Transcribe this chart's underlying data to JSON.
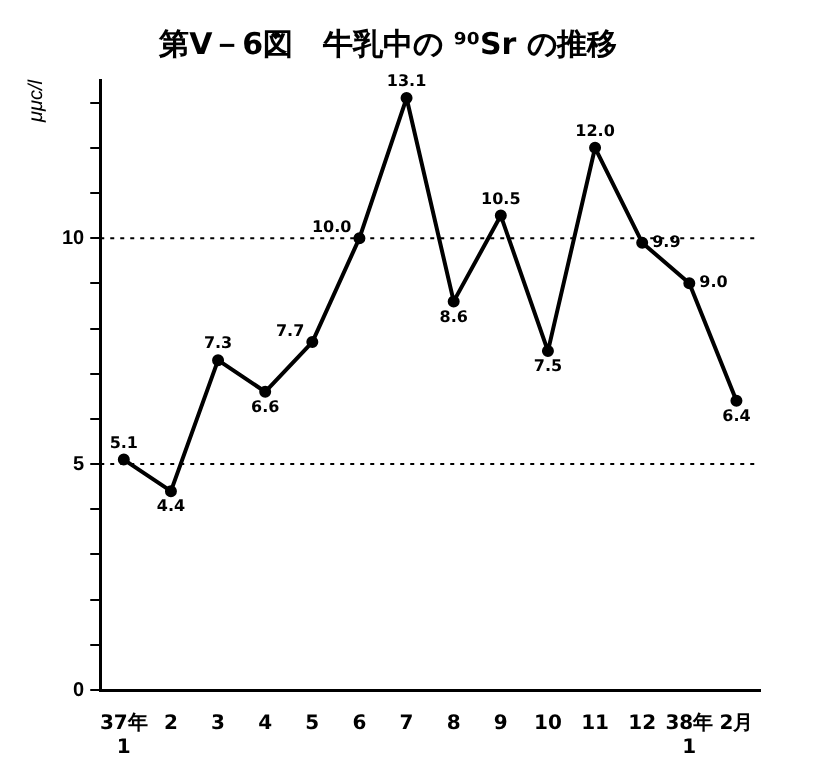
{
  "chart_data": {
    "type": "line",
    "title": "第Ⅴ－6図　牛乳中の ⁹⁰Sr の推移",
    "ylabel": "μμc/l",
    "categories": [
      "37年\n1",
      "2",
      "3",
      "4",
      "5",
      "6",
      "7",
      "8",
      "9",
      "10",
      "11",
      "12",
      "38年\n1",
      "2月"
    ],
    "series": [
      {
        "color": "#000000",
        "values": [
          5.1,
          4.4,
          7.3,
          6.6,
          7.7,
          10.0,
          13.1,
          8.6,
          10.5,
          7.5,
          12.0,
          9.9,
          9.0,
          6.4
        ],
        "value_labels": [
          "5.1",
          "4.4",
          "7.3",
          "6.6",
          "7.7",
          "10.0",
          "13.1",
          "8.6",
          "10.5",
          "7.5",
          "12.0",
          "9.9",
          "9.0",
          "6.4"
        ]
      }
    ],
    "ylim": [
      0,
      13.5
    ],
    "yticks": [
      0,
      {
        "value": 1,
        "label": null
      },
      {
        "value": 2,
        "label": null
      },
      {
        "value": 3,
        "label": null
      },
      {
        "value": 4,
        "label": null
      },
      5,
      {
        "value": 6,
        "label": null
      },
      {
        "value": 7,
        "label": null
      },
      {
        "value": 8,
        "label": null
      },
      {
        "value": 9,
        "label": null
      },
      10,
      {
        "value": 11,
        "label": null
      },
      {
        "value": 12,
        "label": null
      },
      {
        "value": 13,
        "label": null
      }
    ],
    "ref_lines": [
      {
        "axis": "y",
        "value": 5,
        "line_style": "dotted"
      },
      {
        "axis": "y",
        "value": 10,
        "line_style": "dotted"
      }
    ],
    "grid": false,
    "legend": false,
    "marker": "circle",
    "line_style": "solid"
  }
}
